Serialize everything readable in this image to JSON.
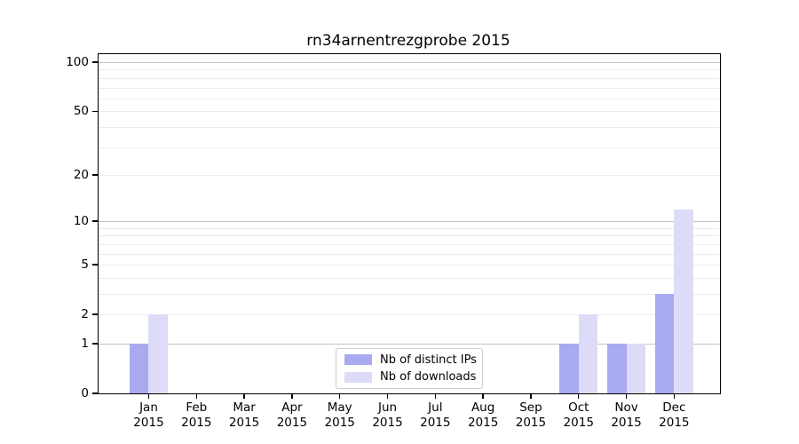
{
  "chart_data": {
    "type": "bar",
    "title": "rn34arnentrezgprobe 2015",
    "categories": [
      {
        "month": "Jan",
        "year": "2015"
      },
      {
        "month": "Feb",
        "year": "2015"
      },
      {
        "month": "Mar",
        "year": "2015"
      },
      {
        "month": "Apr",
        "year": "2015"
      },
      {
        "month": "May",
        "year": "2015"
      },
      {
        "month": "Jun",
        "year": "2015"
      },
      {
        "month": "Jul",
        "year": "2015"
      },
      {
        "month": "Aug",
        "year": "2015"
      },
      {
        "month": "Sep",
        "year": "2015"
      },
      {
        "month": "Oct",
        "year": "2015"
      },
      {
        "month": "Nov",
        "year": "2015"
      },
      {
        "month": "Dec",
        "year": "2015"
      }
    ],
    "series": [
      {
        "name": "Nb of distinct IPs",
        "color": "#a9a9f0",
        "values": [
          1,
          0,
          0,
          0,
          0,
          0,
          0,
          0,
          0,
          1,
          1,
          3
        ]
      },
      {
        "name": "Nb of downloads",
        "color": "#dcdcf8",
        "values": [
          2,
          0,
          0,
          0,
          0,
          0,
          0,
          0,
          0,
          2,
          1,
          12
        ]
      }
    ],
    "xlabel": "",
    "ylabel": "",
    "yscale": "log1p",
    "ylim": [
      0,
      112
    ],
    "yticks": [
      0,
      1,
      2,
      5,
      10,
      20,
      50,
      100
    ],
    "gridlines": {
      "major": [
        1,
        10,
        100
      ],
      "minor": [
        2,
        3,
        4,
        5,
        6,
        7,
        8,
        9,
        20,
        30,
        40,
        50,
        60,
        70,
        80,
        90
      ]
    },
    "legend_position": "lower center",
    "grid": "on",
    "colors": {
      "spine": "#000000",
      "major_grid": "#c4c4c4",
      "minor_grid": "#ececec",
      "legend_border": "#cccccc",
      "background": "#ffffff"
    }
  }
}
